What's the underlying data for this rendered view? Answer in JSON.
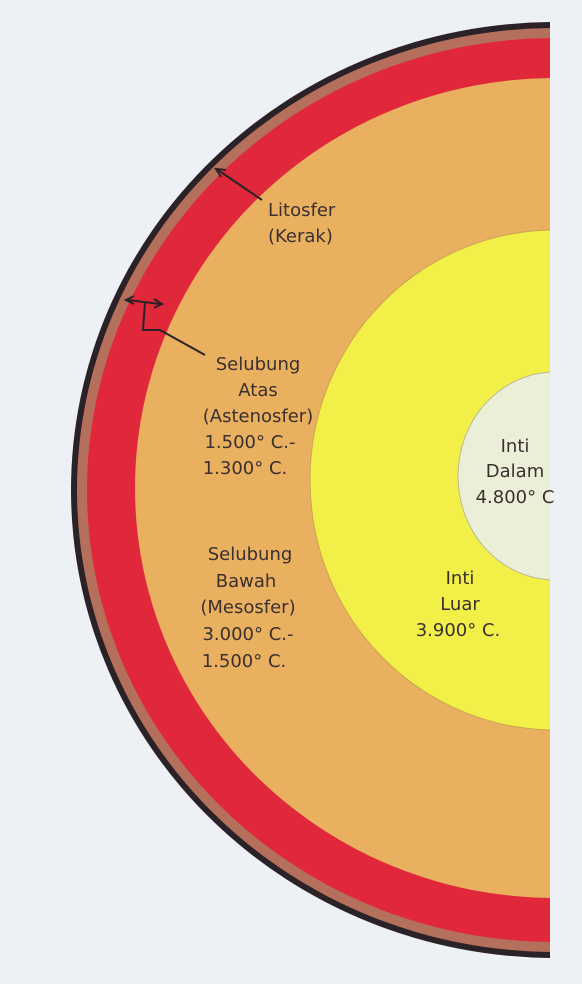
{
  "labels": {
    "lithosphere": [
      "Litosfer",
      "(Kerak)"
    ],
    "upper_mantle": [
      "Selubung",
      "Atas",
      "(Astenosfer)",
      "1.500° C.-",
      "1.300° C."
    ],
    "lower_mantle": [
      "Selubung",
      "Bawah",
      "(Mesosfer)",
      "3.000° C.-",
      "1.500° C."
    ],
    "outer_core": [
      "Inti",
      "Luar",
      "3.900° C."
    ],
    "inner_core": [
      "Inti",
      "Dalam",
      "4.800° C"
    ]
  }
}
